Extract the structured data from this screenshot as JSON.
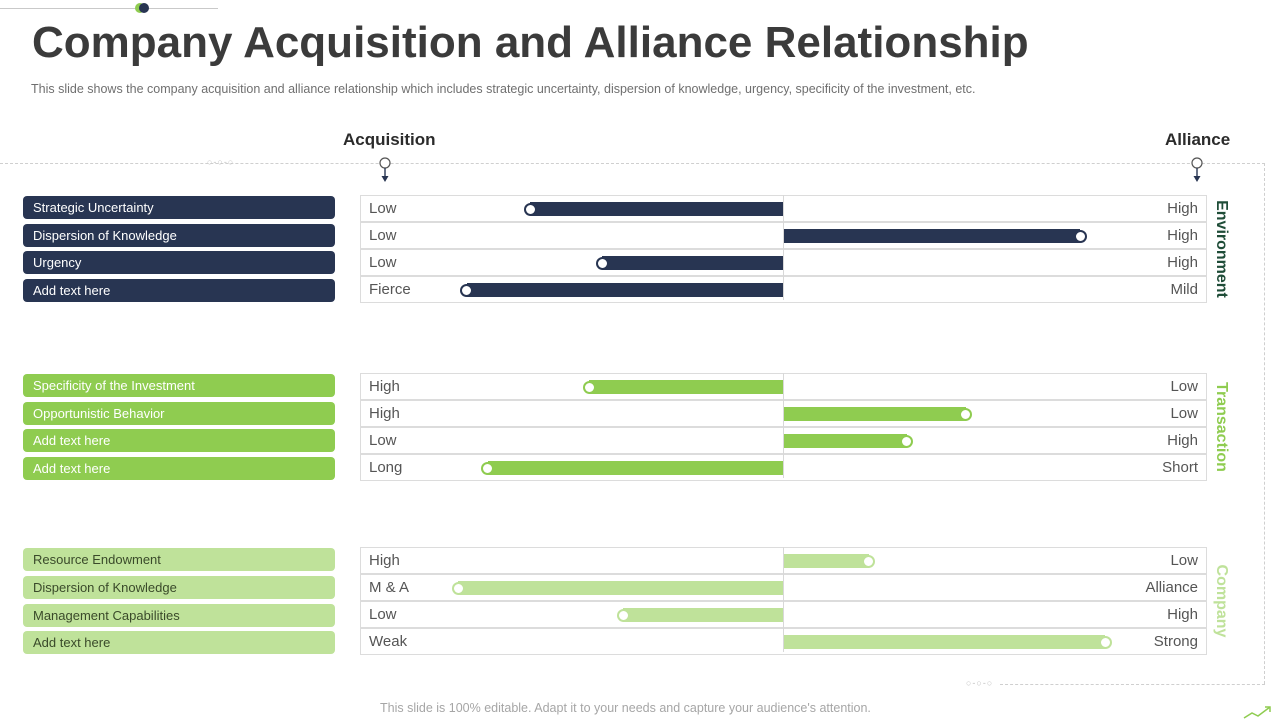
{
  "title": "Company Acquisition and Alliance Relationship",
  "subtitle": "This slide shows the company acquisition and alliance relationship which includes strategic uncertainty, dispersion of knowledge, urgency, specificity of the investment, etc.",
  "columns": {
    "left": "Acquisition",
    "right": "Alliance"
  },
  "colors": {
    "navy": "#283552",
    "green": "#8fcc50",
    "light_green": "#bfe29a",
    "env_text": "#1f4d38",
    "trans_text": "#8fcc50",
    "company_text": "#bfe29a"
  },
  "groups": [
    {
      "name": "Environment",
      "color_key": "navy",
      "label_color_key": "env_text",
      "rows": [
        {
          "label": "Strategic Uncertainty",
          "left": "Low",
          "right": "High",
          "value": -0.6
        },
        {
          "label": "Dispersion of Knowledge",
          "left": "Low",
          "right": "High",
          "value": 0.7
        },
        {
          "label": "Urgency",
          "left": "Low",
          "right": "High",
          "value": -0.43
        },
        {
          "label": "Add text here",
          "left": "Fierce",
          "right": "Mild",
          "value": -0.75
        }
      ]
    },
    {
      "name": "Transaction",
      "color_key": "green",
      "label_color_key": "trans_text",
      "rows": [
        {
          "label": "Specificity of the Investment",
          "left": "High",
          "right": "Low",
          "value": -0.46
        },
        {
          "label": "Opportunistic Behavior",
          "left": "High",
          "right": "Low",
          "value": 0.43
        },
        {
          "label": "Add text here",
          "left": "Low",
          "right": "High",
          "value": 0.29
        },
        {
          "label": "Add text here",
          "left": "Long",
          "right": "Short",
          "value": -0.7
        }
      ]
    },
    {
      "name": "Company",
      "color_key": "light_green",
      "label_color_key": "company_text",
      "rows": [
        {
          "label": "Resource Endowment",
          "left": "High",
          "right": "Low",
          "value": 0.2
        },
        {
          "label": "Dispersion of Knowledge",
          "left": "M & A",
          "right": "Alliance",
          "value": -0.77
        },
        {
          "label": "Management Capabilities",
          "left": "Low",
          "right": "High",
          "value": -0.38
        },
        {
          "label": "Add text here",
          "left": "Weak",
          "right": "Strong",
          "value": 0.76
        }
      ]
    }
  ],
  "footer": "This slide is 100% editable. Adapt it to your needs and capture your audience's attention."
}
